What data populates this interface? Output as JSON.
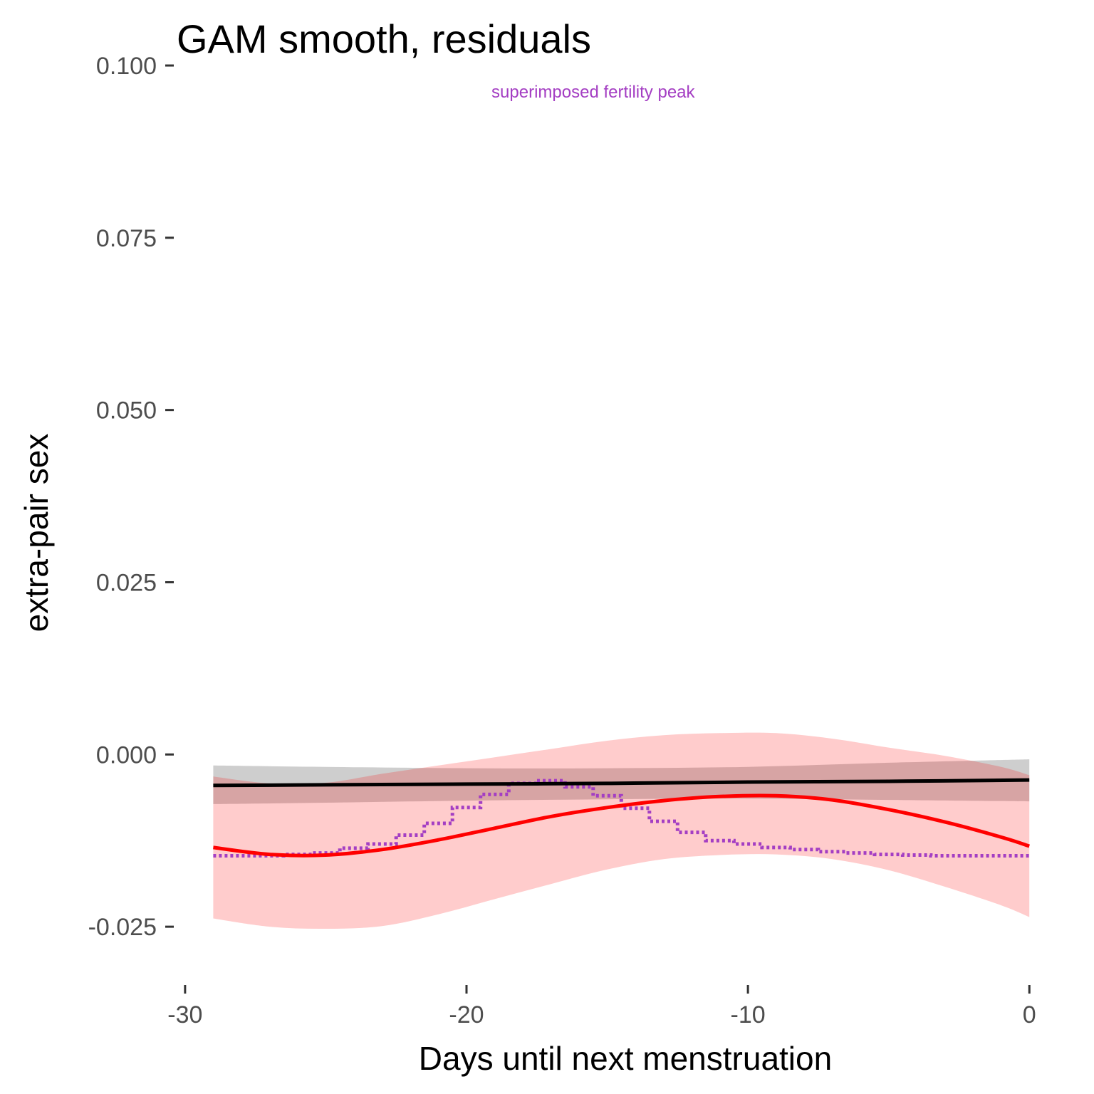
{
  "chart_data": {
    "type": "line",
    "title": "GAM smooth, residuals",
    "xlabel": "Days until next menstruation",
    "ylabel": "extra-pair sex",
    "xlim": [
      -30.3,
      0.5
    ],
    "ylim": [
      -0.0315,
      0.1
    ],
    "grid": false,
    "legend": "none",
    "x_ticks": [
      {
        "value": -30,
        "label": "-30"
      },
      {
        "value": -20,
        "label": "-20"
      },
      {
        "value": -10,
        "label": "-10"
      },
      {
        "value": 0,
        "label": "0"
      }
    ],
    "y_ticks": [
      {
        "value": -0.025,
        "label": "-0.025"
      },
      {
        "value": 0.0,
        "label": "0.000"
      },
      {
        "value": 0.025,
        "label": "0.025"
      },
      {
        "value": 0.05,
        "label": "0.050"
      },
      {
        "value": 0.075,
        "label": "0.075"
      },
      {
        "value": 0.1,
        "label": "0.100"
      }
    ],
    "annotation": {
      "text": "superimposed fertility peak",
      "x": -15.5,
      "y": 0.0962,
      "color": "#a43ec3"
    },
    "series": [
      {
        "kind": "linear_fit",
        "color": "#000000",
        "band_color": "#999999",
        "x": [
          -29,
          -25,
          -20,
          -15,
          -10,
          -5,
          0
        ],
        "y": [
          -0.0045,
          -0.0044,
          -0.0043,
          -0.0042,
          -0.004,
          -0.0039,
          -0.0037
        ],
        "lower": [
          -0.0072,
          -0.007,
          -0.0067,
          -0.0065,
          -0.0064,
          -0.0066,
          -0.0068
        ],
        "upper": [
          -0.0016,
          -0.0018,
          -0.002,
          -0.002,
          -0.0018,
          -0.0012,
          -0.0007
        ]
      },
      {
        "kind": "gam_smooth",
        "color": "#ff0000",
        "band_color": "#ff0000",
        "x": [
          -29,
          -27,
          -25,
          -23,
          -21,
          -19,
          -17,
          -15,
          -13,
          -11,
          -9,
          -7,
          -5,
          -3,
          -1,
          0
        ],
        "y": [
          -0.0135,
          -0.0145,
          -0.0146,
          -0.0138,
          -0.0124,
          -0.0107,
          -0.009,
          -0.0077,
          -0.0067,
          -0.0061,
          -0.006,
          -0.0066,
          -0.008,
          -0.0098,
          -0.012,
          -0.0133
        ],
        "lower": [
          -0.0238,
          -0.025,
          -0.0253,
          -0.0249,
          -0.0232,
          -0.021,
          -0.0188,
          -0.0167,
          -0.0152,
          -0.0146,
          -0.0145,
          -0.0152,
          -0.0168,
          -0.0192,
          -0.0219,
          -0.0236
        ],
        "upper": [
          -0.0032,
          -0.0042,
          -0.0041,
          -0.0028,
          -0.0016,
          -0.0004,
          0.0008,
          0.002,
          0.0028,
          0.0031,
          0.0031,
          0.0023,
          0.001,
          -0.0002,
          -0.0018,
          -0.003
        ]
      },
      {
        "kind": "fertility_step",
        "color": "#a43ec3",
        "dashed": true,
        "x": [
          -29,
          -28,
          -27,
          -26,
          -25,
          -24,
          -23,
          -22,
          -21,
          -20,
          -19,
          -18,
          -17,
          -16,
          -15,
          -14,
          -13,
          -12,
          -11,
          -10,
          -9,
          -8,
          -7,
          -6,
          -5,
          -4,
          -3,
          -2,
          -1,
          0
        ],
        "y": [
          -0.0147,
          -0.0147,
          -0.0147,
          -0.0145,
          -0.0143,
          -0.0136,
          -0.013,
          -0.0117,
          -0.01,
          -0.0077,
          -0.0058,
          -0.0042,
          -0.0038,
          -0.0047,
          -0.006,
          -0.0078,
          -0.0097,
          -0.0113,
          -0.0125,
          -0.013,
          -0.0135,
          -0.0138,
          -0.0141,
          -0.0143,
          -0.0145,
          -0.0146,
          -0.0147,
          -0.0147,
          -0.0147,
          -0.0147
        ]
      }
    ]
  }
}
